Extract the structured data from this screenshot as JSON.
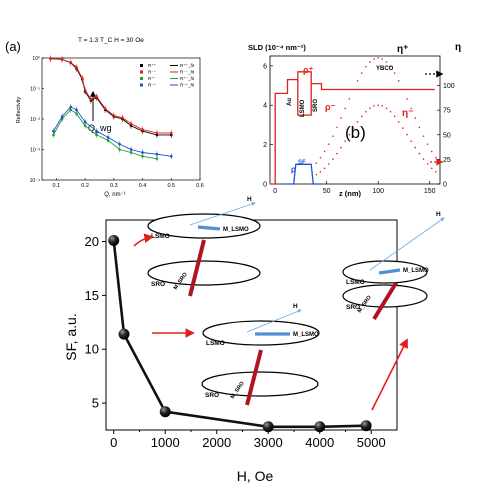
{
  "colors": {
    "red": "#e0201b",
    "blue": "#1f4fd8",
    "green": "#22a02a",
    "black": "#000000",
    "magenta": "#e01a80",
    "dark_red": "#b0151f",
    "light_blue": "#6fa6e6",
    "arrow_blue": "#4f8fd6"
  },
  "chart_data": [
    {
      "id": "panel-a",
      "type": "scatter",
      "panel_label": "(a)",
      "title": "T = 1.3 T_C   H = 30 Oe",
      "ylabel": "Reflectivity",
      "xlabel": "Q, nm⁻¹",
      "xlim": [
        0.05,
        0.6
      ],
      "ylog": true,
      "ylim_exp": [
        -4,
        0
      ],
      "x_ticks": [
        "0.1",
        "0.2",
        "0.3",
        "0.4",
        "0.5",
        "0.6"
      ],
      "y_ticks": [
        "10⁻⁴",
        "10⁻³",
        "10⁻²",
        "10⁻¹",
        "10⁰"
      ],
      "annotation": "Q_wg",
      "legend": [
        {
          "label": "R⁺⁺",
          "color": "#000000",
          "marker": "square"
        },
        {
          "label": "R⁻⁻",
          "color": "#e0201b",
          "marker": "circle"
        },
        {
          "label": "R⁺⁻",
          "color": "#22a02a",
          "marker": "triangle"
        },
        {
          "label": "R⁻⁺",
          "color": "#1f4fd8",
          "marker": "tri-down"
        },
        {
          "label": "R⁺⁺_fit",
          "color": "#000000",
          "marker": "line"
        },
        {
          "label": "R⁻⁻_fit",
          "color": "#e0201b",
          "marker": "line"
        },
        {
          "label": "R⁺⁻_fit",
          "color": "#22a02a",
          "marker": "line"
        },
        {
          "label": "R⁻⁺_fit",
          "color": "#1f4fd8",
          "marker": "line"
        }
      ],
      "series": [
        {
          "name": "R⁺⁺",
          "color": "#000000",
          "x": [
            0.08,
            0.12,
            0.15,
            0.17,
            0.19,
            0.2,
            0.22,
            0.24,
            0.27,
            0.3,
            0.33,
            0.36,
            0.4,
            0.45,
            0.5
          ],
          "y": [
            0.95,
            0.9,
            0.7,
            0.45,
            0.2,
            0.08,
            0.04,
            0.05,
            0.02,
            0.012,
            0.01,
            0.006,
            0.004,
            0.003,
            0.003
          ]
        },
        {
          "name": "R⁻⁻",
          "color": "#e0201b",
          "x": [
            0.08,
            0.12,
            0.15,
            0.17,
            0.19,
            0.2,
            0.22,
            0.24,
            0.27,
            0.3,
            0.33,
            0.36,
            0.4,
            0.45,
            0.5
          ],
          "y": [
            0.95,
            0.9,
            0.72,
            0.5,
            0.22,
            0.09,
            0.045,
            0.055,
            0.022,
            0.013,
            0.011,
            0.007,
            0.0045,
            0.0035,
            0.0035
          ]
        },
        {
          "name": "R⁺⁻",
          "color": "#22a02a",
          "x": [
            0.09,
            0.12,
            0.15,
            0.17,
            0.2,
            0.24,
            0.28,
            0.32,
            0.36,
            0.4,
            0.45
          ],
          "y": [
            0.003,
            0.01,
            0.02,
            0.015,
            0.006,
            0.003,
            0.002,
            0.001,
            0.0008,
            0.0006,
            0.0005
          ]
        },
        {
          "name": "R⁻⁺",
          "color": "#1f4fd8",
          "x": [
            0.09,
            0.12,
            0.15,
            0.17,
            0.2,
            0.24,
            0.28,
            0.32,
            0.36,
            0.4,
            0.45,
            0.5
          ],
          "y": [
            0.004,
            0.012,
            0.025,
            0.02,
            0.008,
            0.004,
            0.0025,
            0.0015,
            0.001,
            0.0008,
            0.0007,
            0.0006
          ]
        }
      ]
    },
    {
      "id": "panel-b",
      "type": "line",
      "panel_label": "(b)",
      "ylabel_left": "SLD (10⁻⁴ nm⁻²)",
      "ylabel_right": "η",
      "xlabel": "z (nm)",
      "xlim": [
        -5,
        160
      ],
      "ylim_left": [
        0,
        6.5
      ],
      "ylim_right": [
        0,
        130
      ],
      "x_ticks": [
        "0",
        "50",
        "100",
        "150"
      ],
      "y_ticks_left": [
        "0",
        "2",
        "4",
        "6"
      ],
      "y_ticks_right": [
        "0",
        "25",
        "50",
        "75",
        "100"
      ],
      "labels": {
        "au": "Au",
        "lsmo": "LSMO",
        "sro": "SRO",
        "ybco": "YBCO",
        "rho_plus": "ρ⁺",
        "rho_minus": "ρ⁻",
        "sf": "SF",
        "rho_sf": "ρ",
        "eta_plus": "η⁺",
        "eta_minus": "η⁻"
      },
      "series": [
        {
          "name": "ρ⁺",
          "color": "#e0201b",
          "z": [
            -5,
            0,
            0,
            12,
            12,
            22,
            22,
            35,
            35,
            45,
            45,
            155
          ],
          "sld": [
            0,
            0,
            4.6,
            4.6,
            5.3,
            5.3,
            5.7,
            5.7,
            5.1,
            5.1,
            4.8,
            4.8
          ]
        },
        {
          "name": "ρ⁻",
          "color": "#e0201b",
          "z": [
            22,
            22,
            35,
            35
          ],
          "sld": [
            5.3,
            3.5,
            3.5,
            5.1
          ]
        },
        {
          "name": "ρ SF",
          "color": "#1f4fd8",
          "z": [
            10,
            18,
            20,
            35,
            37,
            45
          ],
          "sld": [
            0,
            0,
            1.0,
            1.0,
            0,
            0
          ]
        }
      ],
      "eta_plus": {
        "center": 100,
        "amplitude": 128,
        "width": 60,
        "color": "#e01a80"
      },
      "eta_minus": {
        "center": 100,
        "amplitude": 80,
        "width": 55,
        "color": "#e0201b"
      }
    },
    {
      "id": "panel-c",
      "type": "line",
      "xlabel": "H, Oe",
      "ylabel": "SF, a.u.",
      "xlim": [
        -150,
        5500
      ],
      "ylim": [
        2.5,
        22
      ],
      "x_ticks": [
        "0",
        "1000",
        "2000",
        "3000",
        "4000",
        "5000"
      ],
      "y_ticks": [
        "5",
        "10",
        "15",
        "20"
      ],
      "series": [
        {
          "name": "",
          "color": "#000000",
          "x": [
            0,
            200,
            1000,
            3000,
            4000,
            4900
          ],
          "y": [
            20.1,
            11.4,
            4.2,
            2.8,
            2.8,
            2.9
          ]
        }
      ],
      "insets": [
        {
          "top": "LSMO",
          "bottom": "SRO",
          "m_top": "M_LSMO",
          "m_bottom": "M_SRO",
          "field": "H"
        },
        {
          "top": "LSMO",
          "bottom": "SRO",
          "m_top": "M_LSMO",
          "m_bottom": "M_SRO",
          "field": "H"
        },
        {
          "top": "LSMO",
          "bottom": "SRO",
          "m_top": "M_LSMO",
          "m_bottom": "M_SRO",
          "field": "H"
        }
      ]
    }
  ]
}
